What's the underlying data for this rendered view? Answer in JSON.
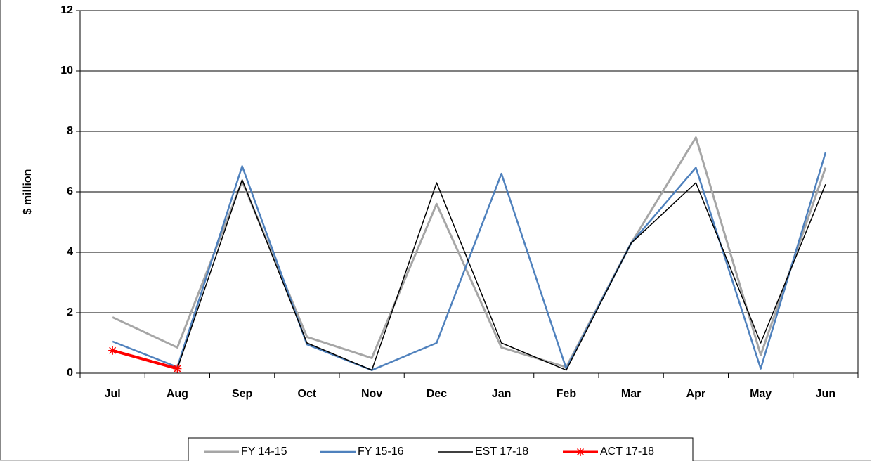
{
  "chart_data": {
    "type": "line",
    "y_label": "$ million",
    "categories": [
      "Jul",
      "Aug",
      "Sep",
      "Oct",
      "Nov",
      "Dec",
      "Jan",
      "Feb",
      "Mar",
      "Apr",
      "May",
      "Jun"
    ],
    "series": [
      {
        "name": "FY 14-15",
        "color": "#a6a6a6",
        "width": 3,
        "values": [
          1.85,
          0.85,
          6.35,
          1.2,
          0.5,
          5.6,
          0.85,
          0.2,
          4.3,
          7.8,
          0.6,
          6.8
        ]
      },
      {
        "name": "FY 15-16",
        "color": "#4f81bd",
        "width": 2.5,
        "values": [
          1.05,
          0.2,
          6.85,
          0.95,
          0.1,
          1.0,
          6.6,
          0.15,
          4.3,
          6.8,
          0.15,
          7.3
        ]
      },
      {
        "name": "EST 17-18",
        "color": "#000000",
        "width": 1.5,
        "values": [
          0.75,
          0.15,
          6.4,
          1.0,
          0.1,
          6.3,
          1.0,
          0.1,
          4.3,
          6.3,
          1.0,
          6.25
        ]
      },
      {
        "name": "ACT 17-18",
        "color": "#ff0000",
        "width": 4,
        "marker": "asterisk",
        "values": [
          0.75,
          0.15,
          null,
          null,
          null,
          null,
          null,
          null,
          null,
          null,
          null,
          null
        ]
      }
    ],
    "ylim": [
      0,
      12
    ],
    "yticks": [
      0,
      2,
      4,
      6,
      8,
      10,
      12
    ],
    "grid": true,
    "legend": "bottom"
  }
}
